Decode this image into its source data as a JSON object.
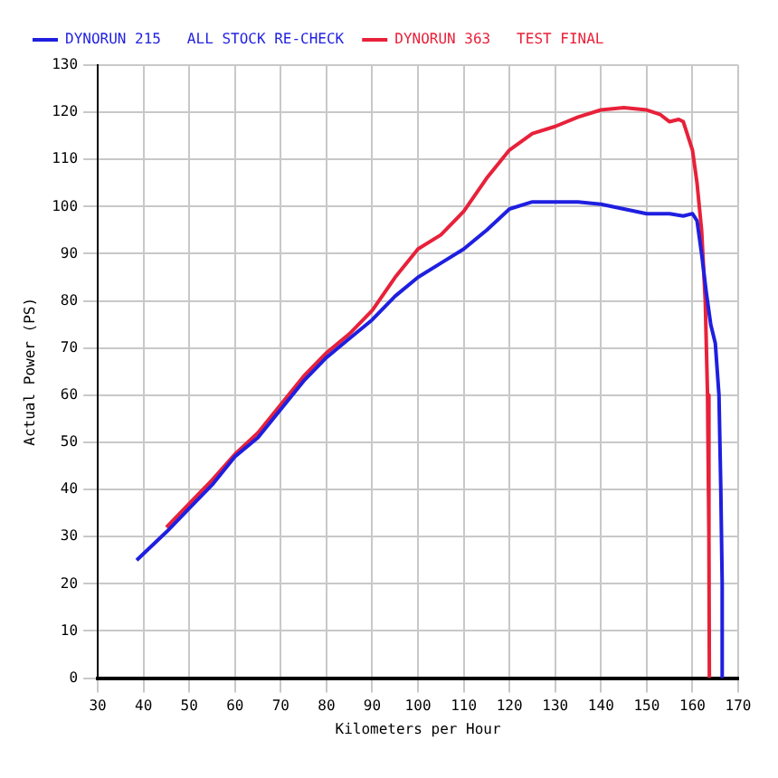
{
  "chart_data": {
    "type": "line",
    "xlabel": "Kilometers per Hour",
    "ylabel": "Actual Power (PS)",
    "xlim": [
      30,
      170
    ],
    "xticks": [
      30,
      40,
      50,
      60,
      70,
      80,
      90,
      100,
      110,
      120,
      130,
      140,
      150,
      160,
      170
    ],
    "ylim": [
      0,
      130
    ],
    "yticks": [
      0,
      10,
      20,
      30,
      40,
      50,
      60,
      70,
      80,
      90,
      100,
      110,
      120,
      130
    ],
    "grid": true,
    "legend": "top left",
    "marker": "none",
    "line_style": "solid",
    "series": [
      {
        "name": "DYNORUN 215   ALL STOCK RE-CHECK",
        "color": "#1f1fe0",
        "x": [
          38.5,
          45,
          50,
          55,
          60,
          65,
          70,
          75,
          80,
          85,
          90,
          95,
          100,
          105,
          110,
          115,
          120,
          125,
          130,
          135,
          140,
          145,
          150,
          155,
          158,
          160,
          161,
          162,
          163,
          164,
          165,
          165.8,
          166.2,
          166.5,
          166.5
        ],
        "values": [
          25,
          31,
          36,
          41,
          47,
          51,
          57,
          63,
          68,
          72,
          76,
          81,
          85,
          88,
          91,
          95,
          99.5,
          101,
          101,
          101,
          100.5,
          99.5,
          98.5,
          98.5,
          98,
          98.5,
          97,
          90,
          82,
          75,
          71,
          60,
          40,
          20,
          0
        ]
      },
      {
        "name": "DYNORUN 363   TEST FINAL",
        "color": "#e8213a",
        "x": [
          45,
          50,
          55,
          60,
          65,
          70,
          75,
          80,
          85,
          90,
          95,
          100,
          105,
          110,
          115,
          120,
          125,
          130,
          135,
          140,
          145,
          150,
          153,
          155,
          157,
          158,
          160,
          161,
          162,
          162.8,
          163.3,
          163.6,
          163.7
        ],
        "values": [
          32,
          37,
          42,
          47.5,
          52,
          58,
          64,
          69,
          73,
          78,
          85,
          91,
          94,
          99,
          106,
          112,
          115.5,
          117,
          119,
          120.5,
          121,
          120.5,
          119.5,
          118,
          118.5,
          118,
          112,
          105,
          95,
          80,
          60,
          30,
          0
        ]
      }
    ]
  }
}
